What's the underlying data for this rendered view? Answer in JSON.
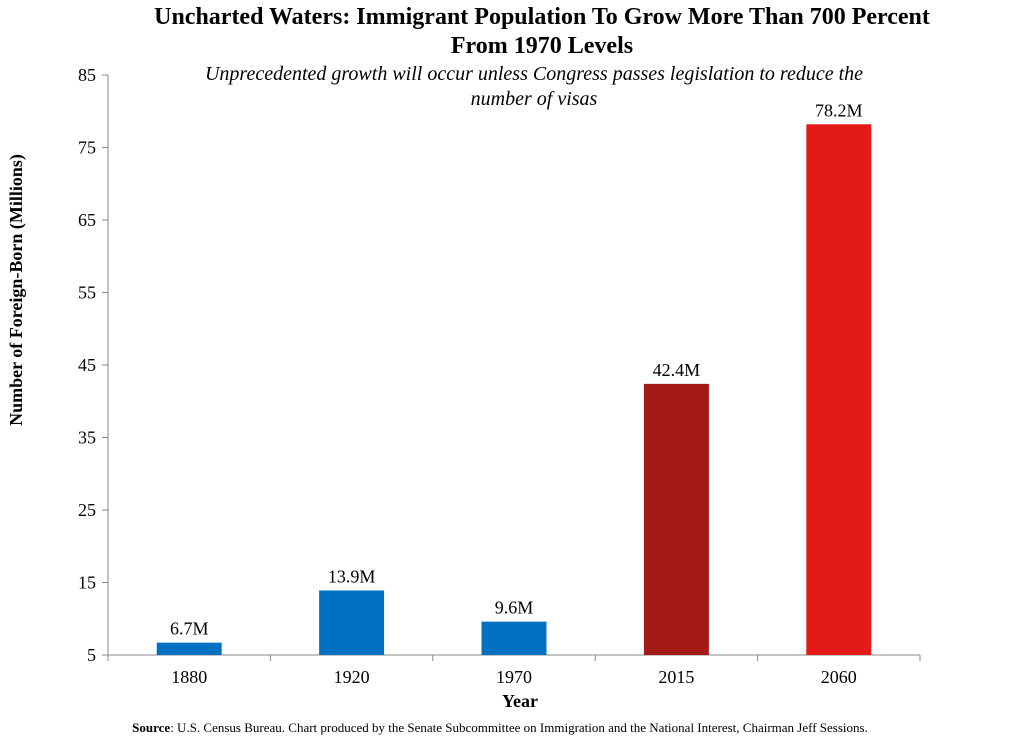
{
  "title_line1": "Uncharted Waters: Immigrant Population To Grow More Than 700 Percent",
  "title_line2": "From 1970 Levels",
  "subtitle_line1": "Unprecedented growth will occur unless Congress passes legislation to reduce the",
  "subtitle_line2": "number of visas",
  "source": {
    "label": "Source",
    "text": ":  U.S. Census Bureau. Chart produced by the Senate Subcommittee on Immigration  and the National Interest, Chairman Jeff Sessions."
  },
  "chart_data": {
    "type": "bar",
    "xlabel": "Year",
    "ylabel": "Number of Foreign-Born (Millions)",
    "ylim": [
      5,
      85
    ],
    "yticks": [
      5,
      15,
      25,
      35,
      45,
      55,
      65,
      75,
      85
    ],
    "grid": false,
    "categories": [
      "1880",
      "1920",
      "1970",
      "2015",
      "2060"
    ],
    "values": [
      6.7,
      13.9,
      9.6,
      42.4,
      78.2
    ],
    "data_labels": [
      "6.7M",
      "13.9M",
      "9.6M",
      "42.4M",
      "78.2M"
    ],
    "colors": [
      "#0070c0",
      "#0070c0",
      "#0070c0",
      "#a31a16",
      "#e41a1a"
    ]
  }
}
